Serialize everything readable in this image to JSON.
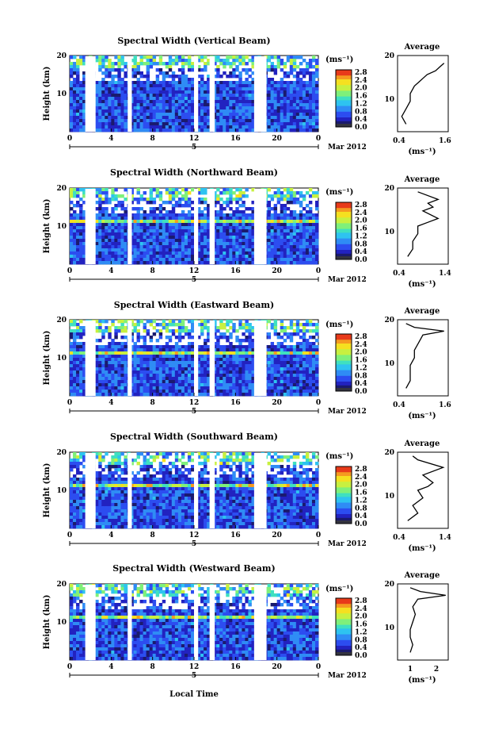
{
  "figure": {
    "x_label": "Local Time",
    "x_ticks": [
      "0",
      "4",
      "8",
      "12",
      "16",
      "20",
      "0"
    ],
    "date_marker": "5",
    "date_label": "Mar 2012",
    "y_label": "Height (km)",
    "y_ticks": [
      "20",
      "10"
    ],
    "colorbar_unit": "(ms⁻¹)",
    "colorbar_ticks": [
      "2.8",
      "2.4",
      "2.0",
      "1.6",
      "1.2",
      "0.8",
      "0.4",
      "0.0"
    ],
    "avg_title": "Average",
    "avg_unit": "(ms⁻¹)"
  },
  "panels": [
    {
      "title": "Spectral Width (Vertical Beam)",
      "avg_ticks": [
        "0.4",
        "1.6"
      ]
    },
    {
      "title": "Spectral Width (Northward Beam)",
      "avg_ticks": [
        "0.4",
        "1.4"
      ]
    },
    {
      "title": "Spectral Width (Eastward Beam)",
      "avg_ticks": [
        "0.4",
        "1.6"
      ]
    },
    {
      "title": "Spectral Width (Southward Beam)",
      "avg_ticks": [
        "0.4",
        "1.4"
      ]
    },
    {
      "title": "Spectral Width (Westward Beam)",
      "avg_ticks": [
        "1",
        "2"
      ]
    }
  ],
  "chart_data": [
    {
      "type": "heatmap",
      "title": "Spectral Width (Vertical Beam)",
      "xlabel": "Local Time",
      "ylabel": "Height (km)",
      "xlim": [
        0,
        24
      ],
      "ylim": [
        0,
        20
      ],
      "zlim": [
        0.0,
        3.0
      ],
      "colorbar_label": "(ms⁻¹)",
      "data_gaps_hours": [
        [
          1.5,
          2.5
        ],
        [
          5.6,
          6.0
        ],
        [
          12.0,
          12.4
        ],
        [
          13.5,
          14.0
        ],
        [
          17.8,
          19.0
        ]
      ],
      "profile": {
        "type": "line",
        "title": "Average",
        "xlim": [
          0.4,
          1.6
        ],
        "ylim": [
          0,
          20
        ],
        "xlabel": "(ms⁻¹)",
        "x": [
          0.6,
          0.5,
          0.6,
          0.7,
          0.7,
          0.8,
          0.9,
          1.0,
          1.1,
          1.3,
          1.4,
          1.5
        ],
        "y": [
          2,
          4,
          6,
          8,
          10,
          12,
          13,
          14,
          15,
          16,
          17,
          18
        ]
      }
    },
    {
      "type": "heatmap",
      "title": "Spectral Width (Northward Beam)",
      "xlabel": "Local Time",
      "ylabel": "Height (km)",
      "xlim": [
        0,
        24
      ],
      "ylim": [
        0,
        20
      ],
      "zlim": [
        0.0,
        3.0
      ],
      "colorbar_label": "(ms⁻¹)",
      "data_gaps_hours": [
        [
          1.5,
          2.5
        ],
        [
          5.6,
          6.0
        ],
        [
          12.0,
          12.4
        ],
        [
          13.5,
          14.0
        ],
        [
          17.8,
          19.0
        ]
      ],
      "profile": {
        "type": "line",
        "title": "Average",
        "xlim": [
          0.4,
          1.4
        ],
        "ylim": [
          0,
          20
        ],
        "xlabel": "(ms⁻¹)",
        "x": [
          0.6,
          0.7,
          0.7,
          0.8,
          0.8,
          1.0,
          1.2,
          0.9,
          1.1,
          1.0,
          1.2,
          0.8
        ],
        "y": [
          2,
          4,
          6,
          8,
          10,
          11,
          12,
          14,
          15,
          16,
          17,
          19
        ]
      }
    },
    {
      "type": "heatmap",
      "title": "Spectral Width (Eastward Beam)",
      "xlabel": "Local Time",
      "ylabel": "Height (km)",
      "xlim": [
        0,
        24
      ],
      "ylim": [
        0,
        20
      ],
      "zlim": [
        0.0,
        3.0
      ],
      "colorbar_label": "(ms⁻¹)",
      "data_gaps_hours": [
        [
          1.5,
          2.5
        ],
        [
          5.6,
          6.0
        ],
        [
          12.0,
          12.4
        ],
        [
          13.5,
          14.0
        ],
        [
          17.8,
          19.0
        ]
      ],
      "profile": {
        "type": "line",
        "title": "Average",
        "xlim": [
          0.4,
          1.6
        ],
        "ylim": [
          0,
          20
        ],
        "xlabel": "(ms⁻¹)",
        "x": [
          0.6,
          0.7,
          0.7,
          0.7,
          0.8,
          0.8,
          0.9,
          1.0,
          1.5,
          0.8,
          0.6
        ],
        "y": [
          2,
          4,
          6,
          8,
          10,
          12,
          14,
          16,
          17,
          18,
          19
        ]
      }
    },
    {
      "type": "heatmap",
      "title": "Spectral Width (Southward Beam)",
      "xlabel": "Local Time",
      "ylabel": "Height (km)",
      "xlim": [
        0,
        24
      ],
      "ylim": [
        0,
        20
      ],
      "zlim": [
        0.0,
        3.0
      ],
      "colorbar_label": "(ms⁻¹)",
      "data_gaps_hours": [
        [
          1.5,
          2.5
        ],
        [
          5.6,
          6.0
        ],
        [
          12.0,
          12.4
        ],
        [
          13.5,
          14.0
        ],
        [
          17.8,
          19.0
        ]
      ],
      "profile": {
        "type": "line",
        "title": "Average",
        "xlim": [
          0.4,
          1.4
        ],
        "ylim": [
          0,
          20
        ],
        "xlabel": "(ms⁻¹)",
        "x": [
          0.6,
          0.8,
          0.7,
          0.9,
          0.8,
          1.0,
          1.1,
          0.9,
          1.3,
          0.8,
          0.7
        ],
        "y": [
          2,
          4,
          6,
          8,
          10,
          11,
          12,
          14,
          16,
          18,
          19
        ]
      }
    },
    {
      "type": "heatmap",
      "title": "Spectral Width (Westward Beam)",
      "xlabel": "Local Time",
      "ylabel": "Height (km)",
      "xlim": [
        0,
        24
      ],
      "ylim": [
        0,
        20
      ],
      "zlim": [
        0.0,
        3.0
      ],
      "colorbar_label": "(ms⁻¹)",
      "data_gaps_hours": [
        [
          1.5,
          2.5
        ],
        [
          5.6,
          6.0
        ],
        [
          12.0,
          12.4
        ],
        [
          13.5,
          14.0
        ],
        [
          17.8,
          19.0
        ]
      ],
      "profile": {
        "type": "line",
        "title": "Average",
        "xlim": [
          0.5,
          2.5
        ],
        "ylim": [
          0,
          20
        ],
        "xlabel": "(ms⁻¹)",
        "x": [
          1.0,
          1.1,
          1.0,
          1.0,
          1.1,
          1.2,
          1.1,
          1.3,
          2.4,
          1.4,
          1.0
        ],
        "y": [
          2,
          4,
          6,
          8,
          10,
          12,
          14,
          16,
          17,
          18,
          19
        ]
      }
    }
  ],
  "colors": {
    "colormap": [
      "#1a1a6e",
      "#2222c0",
      "#2c4df0",
      "#2f8cf5",
      "#2ec3f0",
      "#3fe0c0",
      "#7ff07a",
      "#c8f040",
      "#f5e020",
      "#f59a20",
      "#e83a1a"
    ],
    "colorbar_base": "#333340"
  }
}
